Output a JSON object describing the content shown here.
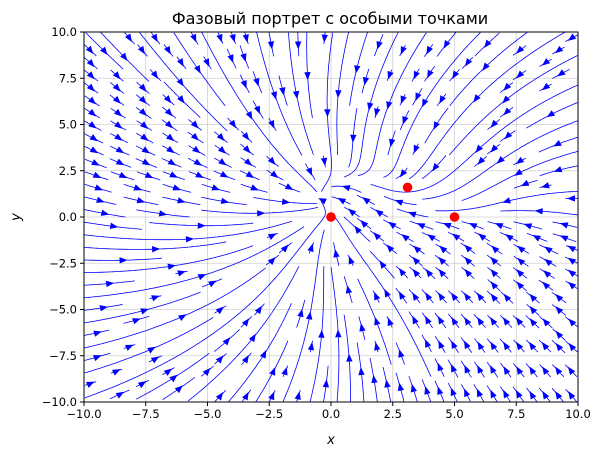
{
  "chart_data": {
    "type": "streamplot",
    "title": "Фазовый портрет с особыми точками",
    "xlabel": "x",
    "ylabel": "y",
    "xlim": [
      -10,
      10
    ],
    "ylim": [
      -10,
      10
    ],
    "grid": true,
    "xticks": [
      -10.0,
      -7.5,
      -5.0,
      -2.5,
      0.0,
      2.5,
      5.0,
      7.5,
      10.0
    ],
    "yticks": [
      -10.0,
      -7.5,
      -5.0,
      -2.5,
      0.0,
      2.5,
      5.0,
      7.5,
      10.0
    ],
    "xtick_labels": [
      "−10.0",
      "−7.5",
      "−5.0",
      "−2.5",
      "0.0",
      "2.5",
      "5.0",
      "7.5",
      "10.0"
    ],
    "ytick_labels": [
      "−10.0",
      "−7.5",
      "−5.0",
      "−2.5",
      "0.0",
      "2.5",
      "5.0",
      "7.5",
      "10.0"
    ],
    "stream_color": "#0000ff",
    "critical_point_color": "#ff0000",
    "critical_points": [
      {
        "x": 0.0,
        "y": 0.0
      },
      {
        "x": 3.1,
        "y": 1.6
      },
      {
        "x": 5.0,
        "y": 0.0
      }
    ]
  }
}
